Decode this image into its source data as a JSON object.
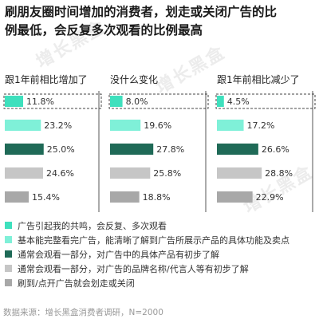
{
  "title": {
    "line1": "刷朋友圈时间增加的消费者，划走或关闭广告的比",
    "line2": "例最低，会反复多次观看的比例最高"
  },
  "colors": {
    "c1": "#3ee0bd",
    "c2": "#7ff0d8",
    "c3": "#1f6a57",
    "c4": "#c6c6c6",
    "c5": "#a8a8a8"
  },
  "chart_data": {
    "type": "bar",
    "orientation": "horizontal",
    "title": "刷朋友圈时间增加的消费者，划走或关闭广告的比例最低，会反复多次观看的比例最高",
    "panels": [
      "跟1年前相比增加了",
      "没什么变化",
      "跟1年前相比减少了"
    ],
    "series": [
      {
        "name": "广告引起我的共鸣，会反复、多次观看",
        "values": [
          11.8,
          8.0,
          4.5
        ]
      },
      {
        "name": "基本能完整看完广告，能清晰了解到广告所展示产品的具体功能及卖点",
        "values": [
          23.2,
          19.6,
          17.2
        ]
      },
      {
        "name": "通常会观看一部分，对广告中的具体产品有初步了解",
        "values": [
          25.0,
          27.8,
          26.6
        ]
      },
      {
        "name": "通常会观看一部分，对广告的品牌名称/代言人等有初步了解",
        "values": [
          24.6,
          25.8,
          28.8
        ]
      },
      {
        "name": "刷到/点开广告就会划走或关闭",
        "values": [
          15.4,
          18.8,
          22.9
        ]
      }
    ],
    "value_labels": [
      [
        "11.8%",
        "8.0%",
        "4.5%"
      ],
      [
        "23.2%",
        "19.6%",
        "17.2%"
      ],
      [
        "25.0%",
        "27.8%",
        "26.6%"
      ],
      [
        "24.6%",
        "25.8%",
        "28.8%"
      ],
      [
        "15.4%",
        "18.8%",
        "22.9%"
      ]
    ],
    "highlight": "first row of each panel is outlined with a dashed box",
    "legend_position": "bottom"
  },
  "legend": [
    "广告引起我的共鸣，会反复、多次观看",
    "基本能完整看完广告，能清晰了解到广告所展示产品的具体功能及卖点",
    "通常会观看一部分，对广告中的具体产品有初步了解",
    "通常会观看一部分，对广告的品牌名称/代言人等有初步了解",
    "刷到/点开广告就会划走或关闭"
  ],
  "source": "数据来源：增长黑盒消费者调研，N=2000",
  "watermark": "增长黑盒"
}
